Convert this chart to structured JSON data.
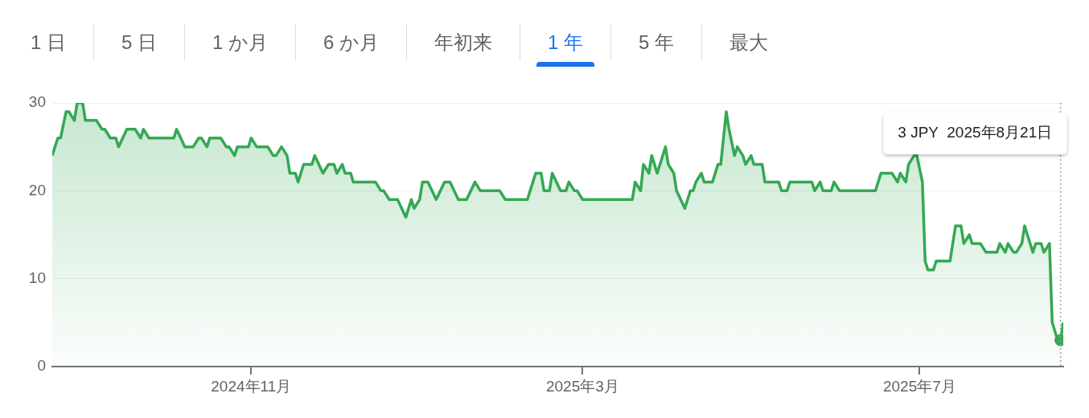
{
  "chart_data": {
    "type": "area",
    "annotations": [
      "1 日",
      "5 日",
      "1 か月",
      "6 か月",
      "年初来",
      "1 年",
      "5 年",
      "最大",
      "3 JPY  2025年8月21日"
    ],
    "series": [
      {
        "color": "#34a853",
        "x": [
          "2024-08-21",
          "2024-08-23",
          "2024-08-24",
          "2024-08-26",
          "2024-08-27",
          "2024-08-29",
          "2024-08-30",
          "2024-09-01",
          "2024-09-02",
          "2024-09-06",
          "2024-09-08",
          "2024-09-09",
          "2024-09-11",
          "2024-09-13",
          "2024-09-14",
          "2024-09-17",
          "2024-09-20",
          "2024-09-22",
          "2024-09-23",
          "2024-09-25",
          "2024-10-04",
          "2024-10-05",
          "2024-10-08",
          "2024-10-11",
          "2024-10-13",
          "2024-10-14",
          "2024-10-16",
          "2024-10-17",
          "2024-10-21",
          "2024-10-23",
          "2024-10-24",
          "2024-10-26",
          "2024-10-27",
          "2024-10-31",
          "2024-11-01",
          "2024-11-03",
          "2024-11-07",
          "2024-11-09",
          "2024-11-10",
          "2024-11-12",
          "2024-11-14",
          "2024-11-15",
          "2024-11-17",
          "2024-11-18",
          "2024-11-20",
          "2024-11-23",
          "2024-11-24",
          "2024-11-27",
          "2024-11-29",
          "2024-12-01",
          "2024-12-02",
          "2024-12-04",
          "2024-12-05",
          "2024-12-07",
          "2024-12-08",
          "2024-12-16",
          "2024-12-18",
          "2024-12-19",
          "2024-12-21",
          "2024-12-24",
          "2024-12-27",
          "2024-12-29",
          "2024-12-30",
          "2025-01-01",
          "2025-01-02",
          "2025-01-04",
          "2025-01-07",
          "2025-01-10",
          "2025-01-12",
          "2025-01-15",
          "2025-01-18",
          "2025-01-21",
          "2025-01-23",
          "2025-01-30",
          "2025-02-01",
          "2025-02-09",
          "2025-02-10",
          "2025-02-12",
          "2025-02-14",
          "2025-02-15",
          "2025-02-17",
          "2025-02-18",
          "2025-02-21",
          "2025-02-23",
          "2025-02-24",
          "2025-02-26",
          "2025-02-27",
          "2025-03-01",
          "2025-03-19",
          "2025-03-20",
          "2025-03-22",
          "2025-03-23",
          "2025-03-25",
          "2025-03-26",
          "2025-03-28",
          "2025-03-29",
          "2025-03-31",
          "2025-04-01",
          "2025-04-03",
          "2025-04-04",
          "2025-04-07",
          "2025-04-09",
          "2025-04-10",
          "2025-04-11",
          "2025-04-13",
          "2025-04-14",
          "2025-04-17",
          "2025-04-19",
          "2025-04-20",
          "2025-04-22",
          "2025-04-23",
          "2025-04-25",
          "2025-04-26",
          "2025-04-28",
          "2025-04-29",
          "2025-05-01",
          "2025-05-02",
          "2025-05-05",
          "2025-05-06",
          "2025-05-11",
          "2025-05-12",
          "2025-05-14",
          "2025-05-15",
          "2025-05-23",
          "2025-05-24",
          "2025-05-26",
          "2025-05-27",
          "2025-05-30",
          "2025-05-31",
          "2025-06-02",
          "2025-06-15",
          "2025-06-17",
          "2025-06-21",
          "2025-06-23",
          "2025-06-24",
          "2025-06-26",
          "2025-06-27",
          "2025-06-29",
          "2025-06-30",
          "2025-07-02",
          "2025-07-03",
          "2025-07-04",
          "2025-07-06",
          "2025-07-07",
          "2025-07-12",
          "2025-07-14",
          "2025-07-16",
          "2025-07-17",
          "2025-07-19",
          "2025-07-20",
          "2025-07-23",
          "2025-07-25",
          "2025-07-29",
          "2025-07-30",
          "2025-08-01",
          "2025-08-02",
          "2025-08-04",
          "2025-08-05",
          "2025-08-07",
          "2025-08-08",
          "2025-08-10",
          "2025-08-11",
          "2025-08-12",
          "2025-08-14",
          "2025-08-15",
          "2025-08-17",
          "2025-08-18",
          "2025-08-20",
          "2025-08-21",
          "2025-08-22"
        ],
        "values": [
          24,
          26,
          26,
          29,
          29,
          28,
          30,
          30,
          28,
          28,
          27,
          27,
          26,
          26,
          25,
          27,
          27,
          26,
          27,
          26,
          26,
          27,
          25,
          25,
          26,
          26,
          25,
          26,
          26,
          25,
          25,
          24,
          25,
          25,
          26,
          25,
          25,
          24,
          24,
          25,
          24,
          22,
          22,
          21,
          23,
          23,
          24,
          22,
          23,
          23,
          22,
          23,
          22,
          22,
          21,
          21,
          20,
          20,
          19,
          19,
          17,
          19,
          18,
          19,
          21,
          21,
          19,
          21,
          21,
          19,
          19,
          21,
          20,
          20,
          19,
          19,
          20,
          22,
          22,
          20,
          20,
          22,
          20,
          20,
          21,
          20,
          20,
          19,
          19,
          21,
          20,
          23,
          22,
          24,
          22,
          23,
          25,
          23,
          22,
          20,
          18,
          20,
          20,
          21,
          22,
          21,
          21,
          23,
          23,
          29,
          27,
          24,
          25,
          24,
          23,
          24,
          23,
          23,
          21,
          21,
          20,
          20,
          21,
          21,
          20,
          21,
          20,
          20,
          21,
          20,
          20,
          22,
          22,
          21,
          22,
          21,
          23,
          24,
          24,
          21,
          12,
          11,
          11,
          12,
          12,
          16,
          16,
          14,
          15,
          14,
          14,
          13,
          13,
          14,
          13,
          14,
          13,
          13,
          14,
          16,
          14,
          13,
          14,
          14,
          13,
          14,
          5,
          3,
          3,
          5
        ]
      },
      {
        "type": "scatter",
        "color": "#34a853",
        "marker": "circle",
        "x": [
          "2025-08-21"
        ],
        "values": [
          3
        ]
      }
    ],
    "xlim": [
      "2024-08-21",
      "2025-08-22"
    ],
    "xticks": [
      {
        "value": "2024-11-01",
        "label": "2024年11月"
      },
      {
        "value": "2025-03-01",
        "label": "2025年3月"
      },
      {
        "value": "2025-07-01",
        "label": "2025年7月"
      }
    ],
    "ylim": [
      0,
      30
    ],
    "yticks": [
      0,
      10,
      20,
      30
    ],
    "grid": "y",
    "legend": false,
    "ref_lines": [
      {
        "axis": "x",
        "value": "2025-08-21",
        "line_style": "dotted",
        "color": "#9aa0a6"
      }
    ]
  }
}
